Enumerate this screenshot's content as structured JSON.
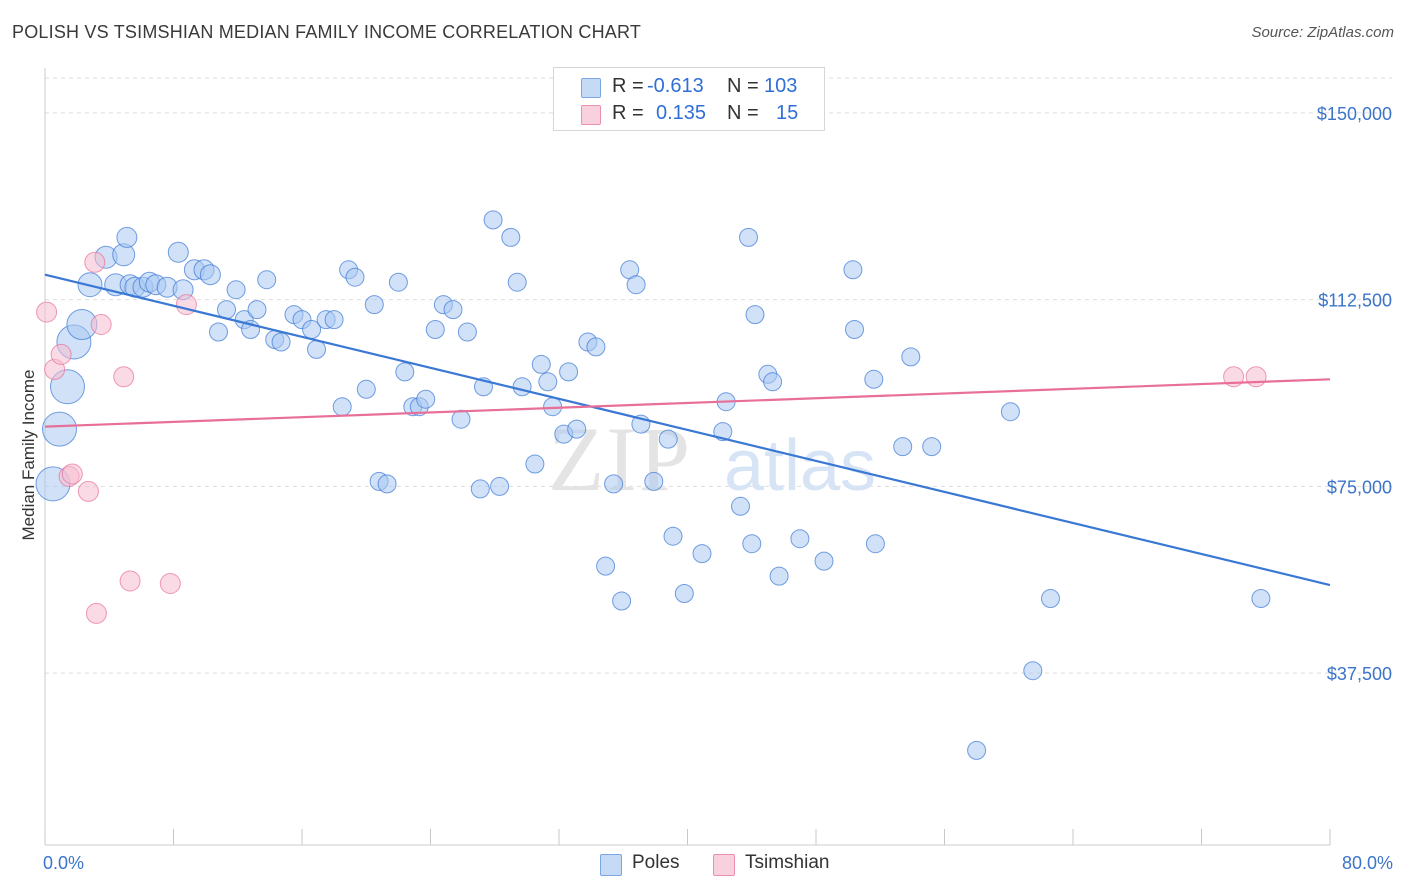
{
  "title": "POLISH VS TSIMSHIAN MEDIAN FAMILY INCOME CORRELATION CHART",
  "source": "Source: ZipAtlas.com",
  "watermark": {
    "zip": "ZIP",
    "atlas": "atlas"
  },
  "legend": {
    "rows": [
      {
        "r_label": "R =",
        "r_value": "-0.613",
        "n_label": "N =",
        "n_value": "103",
        "color": "#a9c8f2"
      },
      {
        "r_label": "R =",
        "r_value": "0.135",
        "n_label": "N =",
        "n_value": "15",
        "color": "#f6bdd0"
      }
    ]
  },
  "bottom_legend": [
    {
      "label": "Poles",
      "color": "#a9c8f2"
    },
    {
      "label": "Tsimshian",
      "color": "#f6bdd0"
    }
  ],
  "chart_data": {
    "type": "scatter",
    "xlabel": "",
    "ylabel": "Median Family Income",
    "xlim": [
      0,
      80
    ],
    "ylim": [
      3000,
      157000
    ],
    "x_tick_labels": [
      "0.0%",
      "80.0%"
    ],
    "y_ticks": [
      {
        "value": 150000,
        "label": "$150,000"
      },
      {
        "value": 112500,
        "label": "$112,500"
      },
      {
        "value": 75000,
        "label": "$75,000"
      },
      {
        "value": 37500,
        "label": "$37,500"
      }
    ],
    "grid": true,
    "legend_position": "top-center",
    "series": [
      {
        "name": "Poles",
        "color": "#3a78d4",
        "fill": "#a9c8f2",
        "trend": {
          "x": [
            0,
            80
          ],
          "y": [
            117500,
            55200
          ]
        },
        "points": [
          [
            0.5,
            75500,
            17
          ],
          [
            0.9,
            86500,
            17
          ],
          [
            1.4,
            95000,
            17
          ],
          [
            1.8,
            104000,
            17
          ],
          [
            2.3,
            107500,
            15
          ],
          [
            2.8,
            115500,
            12
          ],
          [
            3.8,
            121000,
            11
          ],
          [
            4.4,
            115500,
            11
          ],
          [
            4.9,
            121500,
            11
          ],
          [
            5.1,
            125000,
            10
          ],
          [
            5.3,
            115500,
            10
          ],
          [
            5.6,
            115000,
            10
          ],
          [
            6.1,
            115000,
            10
          ],
          [
            6.5,
            116000,
            10
          ],
          [
            6.9,
            115500,
            10
          ],
          [
            7.6,
            115000,
            10
          ],
          [
            8.3,
            122000,
            10
          ],
          [
            8.6,
            114500,
            10
          ],
          [
            9.3,
            118500,
            10
          ],
          [
            9.9,
            118500,
            10
          ],
          [
            10.3,
            117500,
            10
          ],
          [
            10.8,
            106000,
            9
          ],
          [
            11.3,
            110500,
            9
          ],
          [
            11.9,
            114500,
            9
          ],
          [
            12.4,
            108500,
            9
          ],
          [
            12.8,
            106500,
            9
          ],
          [
            13.2,
            110500,
            9
          ],
          [
            13.8,
            116500,
            9
          ],
          [
            14.3,
            104500,
            9
          ],
          [
            14.7,
            104000,
            9
          ],
          [
            15.5,
            109500,
            9
          ],
          [
            16.0,
            108500,
            9
          ],
          [
            16.6,
            106500,
            9
          ],
          [
            16.9,
            102500,
            9
          ],
          [
            17.5,
            108500,
            9
          ],
          [
            18.0,
            108500,
            9
          ],
          [
            18.5,
            91000,
            9
          ],
          [
            18.9,
            118500,
            9
          ],
          [
            19.3,
            117000,
            9
          ],
          [
            20.0,
            94500,
            9
          ],
          [
            20.5,
            111500,
            9
          ],
          [
            20.8,
            76000,
            9
          ],
          [
            21.3,
            75500,
            9
          ],
          [
            22.0,
            116000,
            9
          ],
          [
            22.4,
            98000,
            9
          ],
          [
            22.9,
            91000,
            9
          ],
          [
            23.3,
            91000,
            9
          ],
          [
            23.7,
            92500,
            9
          ],
          [
            24.3,
            106500,
            9
          ],
          [
            24.8,
            111500,
            9
          ],
          [
            25.4,
            110500,
            9
          ],
          [
            25.9,
            88500,
            9
          ],
          [
            26.3,
            106000,
            9
          ],
          [
            27.1,
            74500,
            9
          ],
          [
            27.3,
            95000,
            9
          ],
          [
            27.9,
            128500,
            9
          ],
          [
            28.3,
            75000,
            9
          ],
          [
            29.0,
            125000,
            9
          ],
          [
            29.4,
            116000,
            9
          ],
          [
            29.7,
            95000,
            9
          ],
          [
            30.5,
            79500,
            9
          ],
          [
            30.9,
            99500,
            9
          ],
          [
            31.3,
            96000,
            9
          ],
          [
            31.6,
            91000,
            9
          ],
          [
            32.3,
            85500,
            9
          ],
          [
            32.6,
            98000,
            9
          ],
          [
            33.1,
            86500,
            9
          ],
          [
            33.8,
            104000,
            9
          ],
          [
            34.3,
            103000,
            9
          ],
          [
            34.9,
            59000,
            9
          ],
          [
            35.4,
            75500,
            9
          ],
          [
            35.9,
            52000,
            9
          ],
          [
            36.4,
            118500,
            9
          ],
          [
            36.8,
            115500,
            9
          ],
          [
            37.1,
            87500,
            9
          ],
          [
            37.9,
            76000,
            9
          ],
          [
            38.8,
            84500,
            9
          ],
          [
            39.1,
            65000,
            9
          ],
          [
            39.8,
            53500,
            9
          ],
          [
            40.9,
            61500,
            9
          ],
          [
            42.2,
            86000,
            9
          ],
          [
            42.4,
            92000,
            9
          ],
          [
            43.3,
            71000,
            9
          ],
          [
            43.8,
            125000,
            9
          ],
          [
            44.0,
            63500,
            9
          ],
          [
            44.2,
            109500,
            9
          ],
          [
            45.0,
            97500,
            9
          ],
          [
            45.3,
            96000,
            9
          ],
          [
            45.7,
            57000,
            9
          ],
          [
            47.0,
            64500,
            9
          ],
          [
            48.5,
            60000,
            9
          ],
          [
            50.3,
            118500,
            9
          ],
          [
            50.4,
            106500,
            9
          ],
          [
            51.6,
            96500,
            9
          ],
          [
            51.7,
            63500,
            9
          ],
          [
            53.4,
            83000,
            9
          ],
          [
            53.9,
            101000,
            9
          ],
          [
            55.2,
            83000,
            9
          ],
          [
            58.0,
            22000,
            9
          ],
          [
            60.1,
            90000,
            9
          ],
          [
            61.5,
            38000,
            9
          ],
          [
            62.6,
            52500,
            9
          ],
          [
            75.7,
            52500,
            9
          ]
        ]
      },
      {
        "name": "Tsimshian",
        "color": "#e86f98",
        "fill": "#f6bdd0",
        "trend": {
          "x": [
            0,
            80
          ],
          "y": [
            87000,
            96500
          ]
        },
        "points": [
          [
            0.1,
            110000,
            10
          ],
          [
            0.6,
            98500,
            10
          ],
          [
            1.0,
            101500,
            10
          ],
          [
            1.5,
            77000,
            10
          ],
          [
            1.7,
            77500,
            10
          ],
          [
            2.7,
            74000,
            10
          ],
          [
            3.1,
            120000,
            10
          ],
          [
            3.2,
            49500,
            10
          ],
          [
            3.5,
            107500,
            10
          ],
          [
            4.9,
            97000,
            10
          ],
          [
            5.3,
            56000,
            10
          ],
          [
            7.8,
            55500,
            10
          ],
          [
            8.8,
            111500,
            10
          ],
          [
            74.0,
            97000,
            10
          ],
          [
            75.4,
            97000,
            10
          ]
        ]
      }
    ]
  }
}
